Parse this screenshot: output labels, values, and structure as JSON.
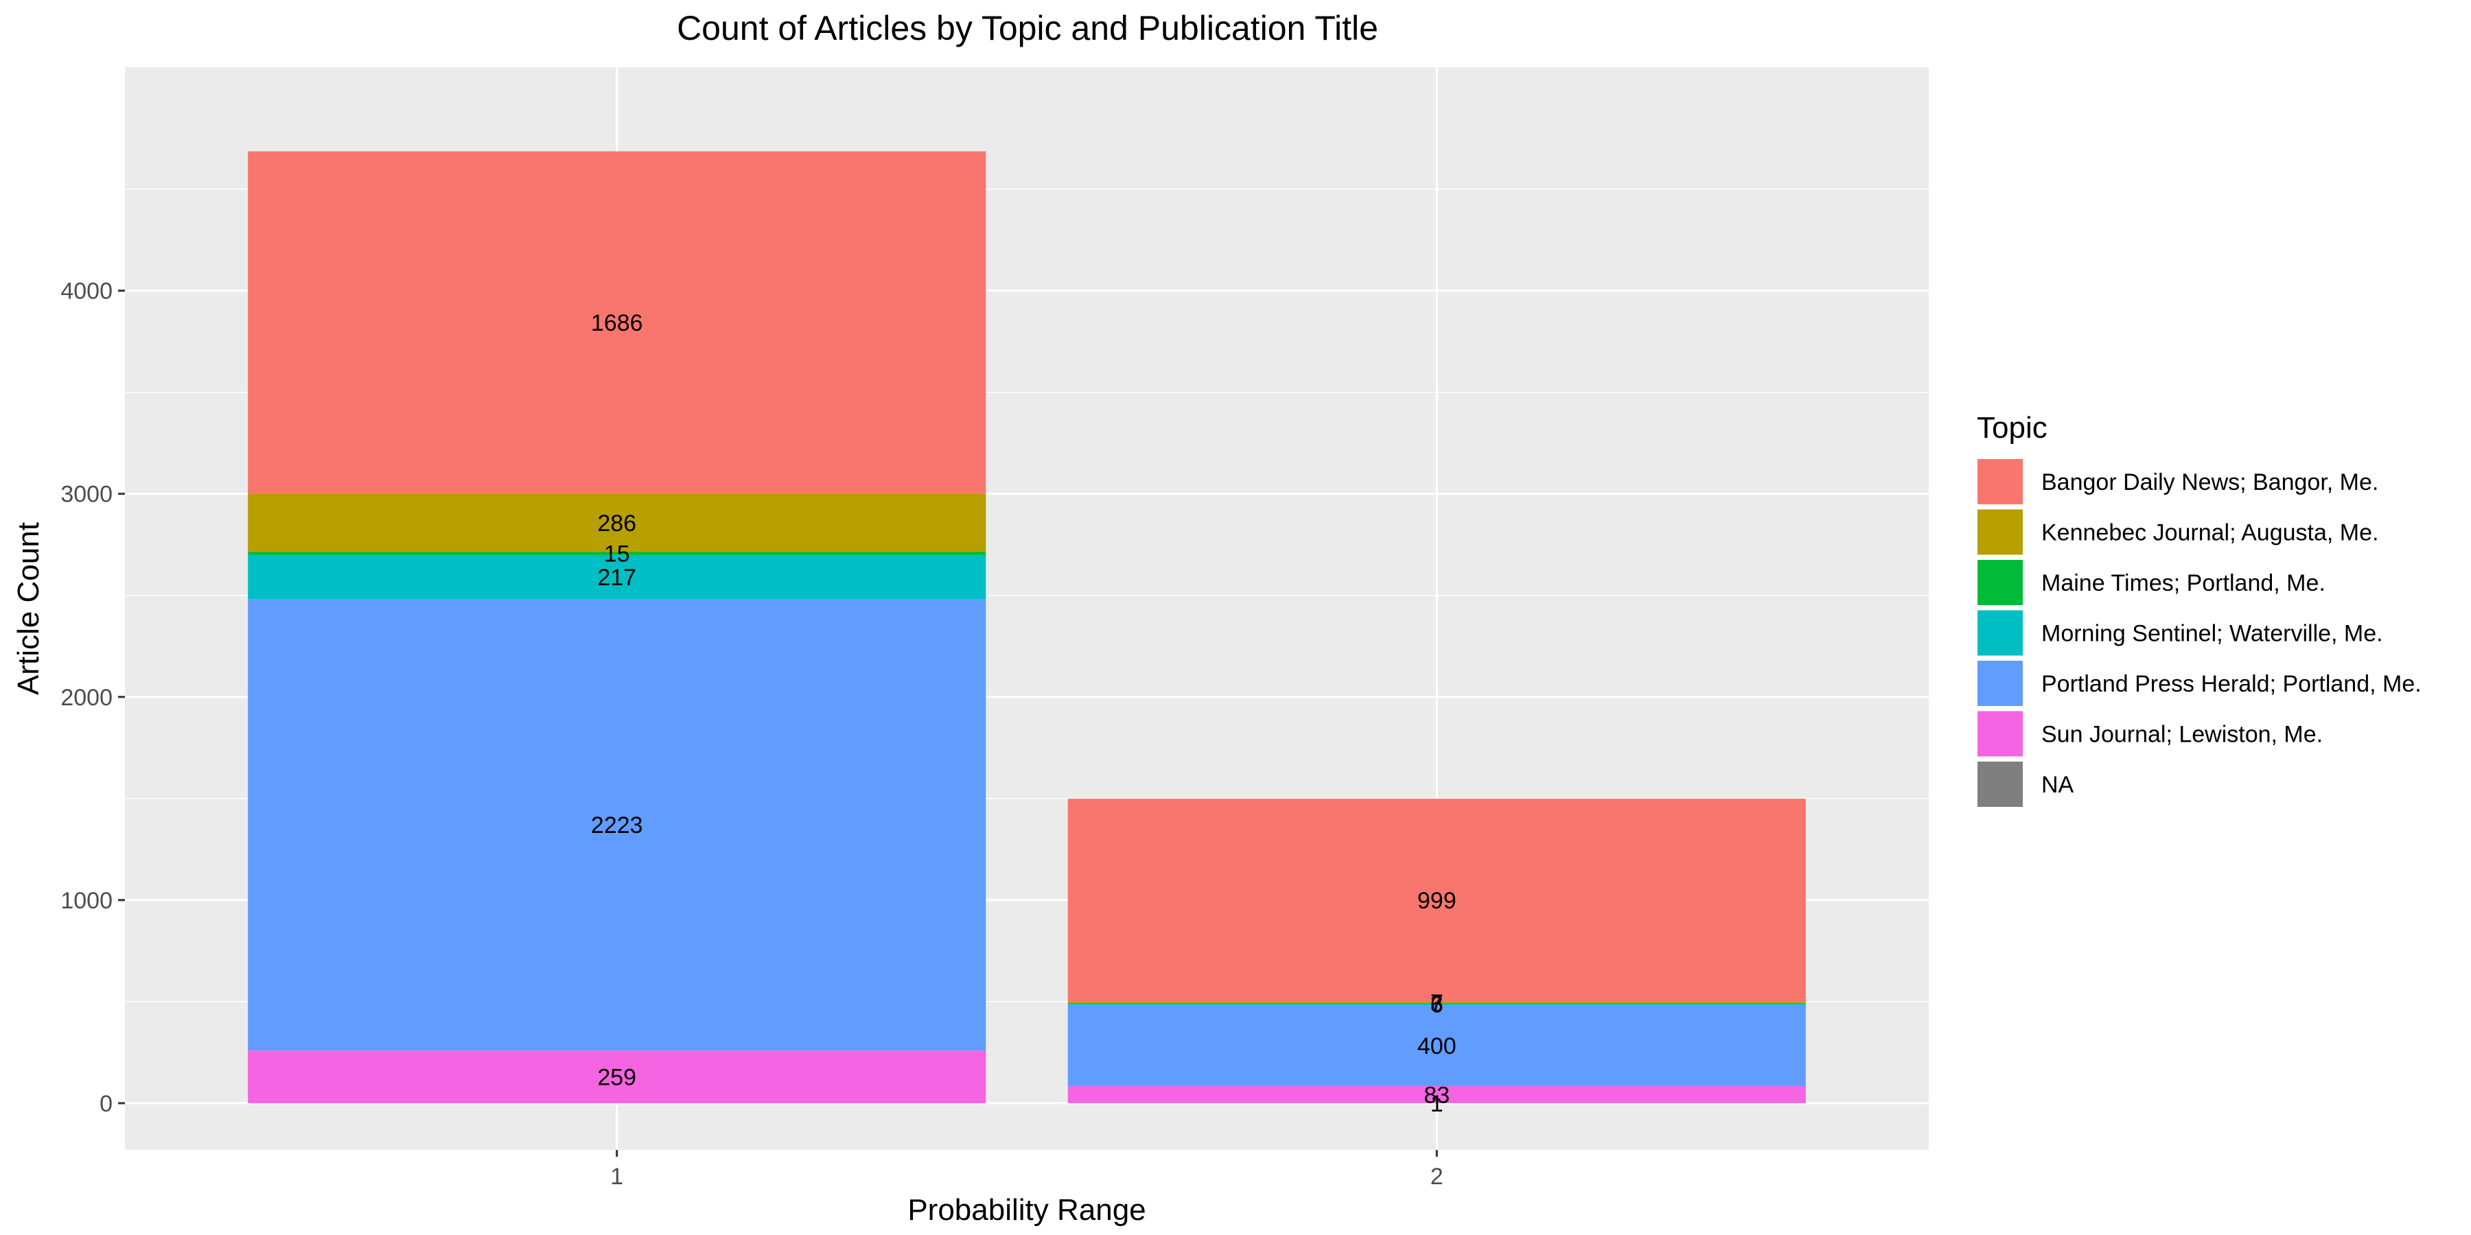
{
  "chart_data": {
    "type": "bar",
    "stacked": true,
    "title": "Count of Articles by Topic and Publication Title",
    "xlabel": "Probability Range",
    "ylabel": "Article Count",
    "categories": [
      "1",
      "2"
    ],
    "ylim": [
      -230,
      5100
    ],
    "yticks": [
      0,
      1000,
      2000,
      3000,
      4000
    ],
    "grid": true,
    "legend": {
      "title": "Topic",
      "position": "right"
    },
    "series": [
      {
        "name": "Bangor Daily News; Bangor, Me.",
        "color": "#F8766D",
        "values": [
          1686,
          999
        ],
        "labels": [
          "1686",
          "999"
        ]
      },
      {
        "name": "Kennebec Journal; Augusta, Me.",
        "color": "#B79F00",
        "values": [
          286,
          7
        ],
        "labels": [
          "286",
          "7"
        ]
      },
      {
        "name": "Maine Times; Portland, Me.",
        "color": "#00BA38",
        "values": [
          15,
          3
        ],
        "labels": [
          "15",
          "3"
        ]
      },
      {
        "name": "Morning Sentinel; Waterville, Me.",
        "color": "#00BFC4",
        "values": [
          217,
          6
        ],
        "labels": [
          "217",
          "6"
        ]
      },
      {
        "name": "Portland Press Herald; Portland, Me.",
        "color": "#619CFF",
        "values": [
          2223,
          400
        ],
        "labels": [
          "2223",
          "400"
        ]
      },
      {
        "name": "Sun Journal; Lewiston, Me.",
        "color": "#F564E3",
        "values": [
          259,
          83
        ],
        "labels": [
          "259",
          "83"
        ]
      },
      {
        "name": "NA",
        "color": "#7F7F7F",
        "values": [
          0,
          1
        ],
        "labels": [
          "",
          "1"
        ]
      }
    ]
  }
}
